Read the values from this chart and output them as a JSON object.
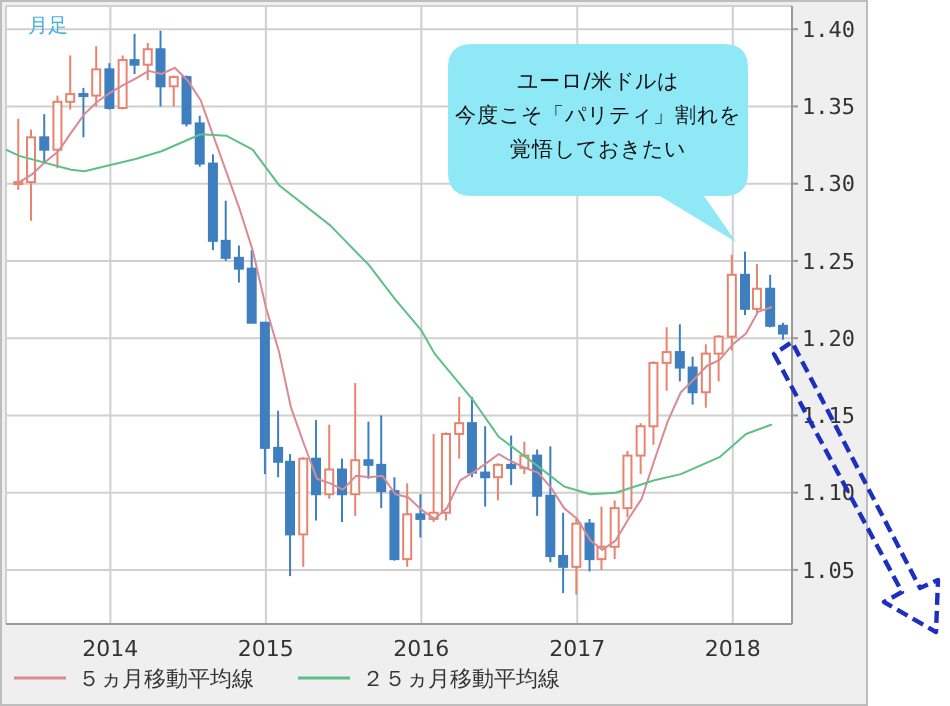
{
  "chart_data": {
    "type": "candlestick",
    "annotations": [
      "月足",
      "ユーロ/米ドルは",
      "今度こそ「パリティ」割れを",
      "覚悟しておきたい"
    ],
    "xlim": [
      "2013-05-01",
      "2018-05-20"
    ],
    "xticks": [
      "2014",
      "2015",
      "2016",
      "2017",
      "2018"
    ],
    "ylim": [
      1.015,
      1.415
    ],
    "yticks": [
      {
        "value": 1.05,
        "label": "1.05"
      },
      {
        "value": 1.1,
        "label": "1.10"
      },
      {
        "value": 1.15,
        "label": "1.15"
      },
      {
        "value": 1.2,
        "label": "1.20"
      },
      {
        "value": 1.25,
        "label": "1.25"
      },
      {
        "value": 1.3,
        "label": "1.30"
      },
      {
        "value": 1.35,
        "label": "1.35"
      },
      {
        "value": 1.4,
        "label": "1.40"
      }
    ],
    "grid": true,
    "legend": "bottom left",
    "series": [
      {
        "x": [
          "2013-06",
          "2013-07",
          "2013-08",
          "2013-09",
          "2013-10",
          "2013-11",
          "2013-12",
          "2014-01",
          "2014-02",
          "2014-03",
          "2014-04",
          "2014-05",
          "2014-06",
          "2014-07",
          "2014-08",
          "2014-09",
          "2014-10",
          "2014-11",
          "2014-12",
          "2015-01",
          "2015-02",
          "2015-03",
          "2015-04",
          "2015-05",
          "2015-06",
          "2015-07",
          "2015-08",
          "2015-09",
          "2015-10",
          "2015-11",
          "2015-12",
          "2016-01",
          "2016-02",
          "2016-03",
          "2016-04",
          "2016-05",
          "2016-06",
          "2016-07",
          "2016-08",
          "2016-09",
          "2016-10",
          "2016-11",
          "2016-12",
          "2017-01",
          "2017-02",
          "2017-03",
          "2017-04",
          "2017-05",
          "2017-06",
          "2017-07",
          "2017-08",
          "2017-09",
          "2017-10",
          "2017-11",
          "2017-12",
          "2018-01",
          "2018-02",
          "2018-03",
          "2018-04",
          "2018-05"
        ],
        "ohlc": [
          [
            1.301,
            1.342,
            1.296,
            1.301
          ],
          [
            1.301,
            1.335,
            1.276,
            1.33
          ],
          [
            1.33,
            1.345,
            1.313,
            1.322
          ],
          [
            1.322,
            1.357,
            1.31,
            1.353
          ],
          [
            1.353,
            1.383,
            1.348,
            1.358
          ],
          [
            1.358,
            1.362,
            1.33,
            1.357
          ],
          [
            1.357,
            1.389,
            1.35,
            1.374
          ],
          [
            1.374,
            1.378,
            1.348,
            1.349
          ],
          [
            1.349,
            1.383,
            1.348,
            1.38
          ],
          [
            1.38,
            1.397,
            1.371,
            1.377
          ],
          [
            1.377,
            1.391,
            1.367,
            1.387
          ],
          [
            1.387,
            1.399,
            1.35,
            1.363
          ],
          [
            1.363,
            1.37,
            1.35,
            1.369
          ],
          [
            1.369,
            1.37,
            1.337,
            1.339
          ],
          [
            1.339,
            1.344,
            1.311,
            1.313
          ],
          [
            1.313,
            1.319,
            1.257,
            1.263
          ],
          [
            1.263,
            1.289,
            1.25,
            1.252
          ],
          [
            1.252,
            1.26,
            1.236,
            1.245
          ],
          [
            1.245,
            1.257,
            1.21,
            1.21
          ],
          [
            1.21,
            1.21,
            1.112,
            1.129
          ],
          [
            1.129,
            1.153,
            1.11,
            1.12
          ],
          [
            1.12,
            1.125,
            1.046,
            1.073
          ],
          [
            1.073,
            1.123,
            1.052,
            1.122
          ],
          [
            1.122,
            1.147,
            1.082,
            1.099
          ],
          [
            1.099,
            1.144,
            1.096,
            1.115
          ],
          [
            1.115,
            1.122,
            1.081,
            1.099
          ],
          [
            1.099,
            1.171,
            1.085,
            1.121
          ],
          [
            1.121,
            1.146,
            1.109,
            1.118
          ],
          [
            1.118,
            1.15,
            1.09,
            1.101
          ],
          [
            1.101,
            1.11,
            1.056,
            1.057
          ],
          [
            1.057,
            1.106,
            1.052,
            1.086
          ],
          [
            1.086,
            1.099,
            1.071,
            1.083
          ],
          [
            1.083,
            1.138,
            1.081,
            1.087
          ],
          [
            1.087,
            1.139,
            1.082,
            1.138
          ],
          [
            1.138,
            1.162,
            1.122,
            1.145
          ],
          [
            1.145,
            1.162,
            1.11,
            1.113
          ],
          [
            1.113,
            1.143,
            1.091,
            1.11
          ],
          [
            1.11,
            1.119,
            1.095,
            1.118
          ],
          [
            1.118,
            1.137,
            1.105,
            1.116
          ],
          [
            1.116,
            1.133,
            1.112,
            1.124
          ],
          [
            1.124,
            1.128,
            1.085,
            1.098
          ],
          [
            1.098,
            1.13,
            1.055,
            1.059
          ],
          [
            1.059,
            1.087,
            1.035,
            1.052
          ],
          [
            1.052,
            1.083,
            1.034,
            1.08
          ],
          [
            1.08,
            1.083,
            1.049,
            1.057
          ],
          [
            1.057,
            1.091,
            1.05,
            1.065
          ],
          [
            1.065,
            1.095,
            1.057,
            1.09
          ],
          [
            1.09,
            1.127,
            1.084,
            1.124
          ],
          [
            1.124,
            1.145,
            1.112,
            1.143
          ],
          [
            1.143,
            1.185,
            1.131,
            1.184
          ],
          [
            1.184,
            1.207,
            1.166,
            1.191
          ],
          [
            1.191,
            1.209,
            1.172,
            1.181
          ],
          [
            1.181,
            1.188,
            1.157,
            1.165
          ],
          [
            1.165,
            1.196,
            1.155,
            1.19
          ],
          [
            1.19,
            1.202,
            1.172,
            1.201
          ],
          [
            1.201,
            1.254,
            1.192,
            1.241
          ],
          [
            1.241,
            1.256,
            1.215,
            1.219
          ],
          [
            1.219,
            1.248,
            1.216,
            1.232
          ],
          [
            1.232,
            1.241,
            1.207,
            1.208
          ],
          [
            1.208,
            1.21,
            1.199,
            1.203
          ]
        ],
        "colors": [
          "#e8836f",
          "#e8836f",
          "#3f7fbf",
          "#e8836f",
          "#e8836f",
          "#3f7fbf",
          "#e8836f",
          "#3f7fbf",
          "#e8836f",
          "#3f7fbf",
          "#e8836f",
          "#3f7fbf",
          "#e8836f",
          "#3f7fbf",
          "#3f7fbf",
          "#3f7fbf",
          "#3f7fbf",
          "#3f7fbf",
          "#3f7fbf",
          "#3f7fbf",
          "#3f7fbf",
          "#3f7fbf",
          "#e8836f",
          "#3f7fbf",
          "#e8836f",
          "#3f7fbf",
          "#e8836f",
          "#3f7fbf",
          "#3f7fbf",
          "#3f7fbf",
          "#e8836f",
          "#3f7fbf",
          "#e8836f",
          "#e8836f",
          "#e8836f",
          "#3f7fbf",
          "#3f7fbf",
          "#e8836f",
          "#3f7fbf",
          "#e8836f",
          "#3f7fbf",
          "#3f7fbf",
          "#3f7fbf",
          "#e8836f",
          "#3f7fbf",
          "#e8836f",
          "#e8836f",
          "#e8836f",
          "#e8836f",
          "#e8836f",
          "#e8836f",
          "#3f7fbf",
          "#3f7fbf",
          "#e8836f",
          "#e8836f",
          "#e8836f",
          "#3f7fbf",
          "#e8836f",
          "#3f7fbf",
          "#3f7fbf"
        ]
      },
      {
        "type": "line",
        "name": "５ヵ月移動平均線",
        "color": "#d98a93",
        "x": [
          "2013-06",
          "2013-07",
          "2013-08",
          "2013-09",
          "2013-10",
          "2013-11",
          "2013-12",
          "2014-01",
          "2014-02",
          "2014-03",
          "2014-04",
          "2014-05",
          "2014-06",
          "2014-07",
          "2014-08",
          "2014-09",
          "2014-10",
          "2014-11",
          "2014-12",
          "2015-01",
          "2015-02",
          "2015-03",
          "2015-04",
          "2015-05",
          "2015-06",
          "2015-07",
          "2015-08",
          "2015-09",
          "2015-10",
          "2015-11",
          "2015-12",
          "2016-01",
          "2016-02",
          "2016-03",
          "2016-04",
          "2016-05",
          "2016-06",
          "2016-07",
          "2016-08",
          "2016-09",
          "2016-10",
          "2016-11",
          "2016-12",
          "2017-01",
          "2017-02",
          "2017-03",
          "2017-04",
          "2017-05",
          "2017-06",
          "2017-07",
          "2017-08",
          "2017-09",
          "2017-10",
          "2017-11",
          "2017-12",
          "2018-01",
          "2018-02",
          "2018-03",
          "2018-04"
        ],
        "values": [
          1.301,
          1.306,
          1.314,
          1.321,
          1.333,
          1.345,
          1.353,
          1.359,
          1.364,
          1.368,
          1.373,
          1.371,
          1.375,
          1.367,
          1.354,
          1.33,
          1.307,
          1.283,
          1.257,
          1.22,
          1.191,
          1.155,
          1.131,
          1.109,
          1.106,
          1.102,
          1.111,
          1.11,
          1.111,
          1.099,
          1.097,
          1.089,
          1.083,
          1.09,
          1.108,
          1.113,
          1.119,
          1.125,
          1.12,
          1.116,
          1.113,
          1.103,
          1.09,
          1.083,
          1.069,
          1.063,
          1.069,
          1.083,
          1.096,
          1.121,
          1.146,
          1.165,
          1.173,
          1.182,
          1.186,
          1.196,
          1.203,
          1.217,
          1.22
        ]
      },
      {
        "type": "line",
        "name": "２５ヵ月移動平均線",
        "color": "#5fbf88",
        "x": [
          "2013-05",
          "2013-06",
          "2013-10",
          "2013-11",
          "2014-03",
          "2014-05",
          "2014-08",
          "2014-10",
          "2014-12",
          "2015-02",
          "2015-06",
          "2015-09",
          "2015-11",
          "2016-01",
          "2016-02",
          "2016-05",
          "2016-07",
          "2016-10",
          "2016-12",
          "2017-02",
          "2017-04",
          "2017-07",
          "2017-09",
          "2017-12",
          "2018-02",
          "2018-04"
        ],
        "values": [
          1.322,
          1.318,
          1.309,
          1.308,
          1.316,
          1.321,
          1.332,
          1.331,
          1.322,
          1.299,
          1.273,
          1.247,
          1.225,
          1.205,
          1.19,
          1.16,
          1.136,
          1.117,
          1.104,
          1.099,
          1.1,
          1.108,
          1.112,
          1.123,
          1.138,
          1.144
        ]
      }
    ]
  }
}
